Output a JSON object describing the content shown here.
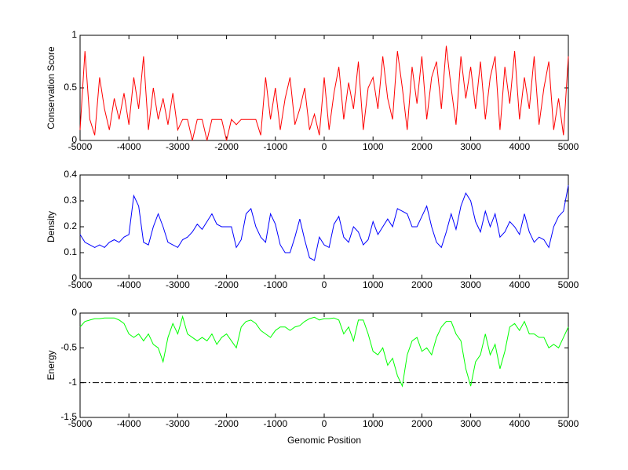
{
  "chart_data": [
    {
      "type": "line",
      "ylabel": "Conservation Score",
      "x": [
        -5000,
        -4900,
        -4800,
        -4700,
        -4600,
        -4500,
        -4400,
        -4300,
        -4200,
        -4100,
        -4000,
        -3900,
        -3800,
        -3700,
        -3600,
        -3500,
        -3400,
        -3300,
        -3200,
        -3100,
        -3000,
        -2900,
        -2800,
        -2700,
        -2600,
        -2500,
        -2400,
        -2300,
        -2200,
        -2100,
        -2000,
        -1900,
        -1800,
        -1700,
        -1600,
        -1500,
        -1400,
        -1300,
        -1200,
        -1100,
        -1000,
        -900,
        -800,
        -700,
        -600,
        -500,
        -400,
        -300,
        -200,
        -100,
        0,
        100,
        200,
        300,
        400,
        500,
        600,
        700,
        800,
        900,
        1000,
        1100,
        1200,
        1300,
        1400,
        1500,
        1600,
        1700,
        1800,
        1900,
        2000,
        2100,
        2200,
        2300,
        2400,
        2500,
        2600,
        2700,
        2800,
        2900,
        3000,
        3100,
        3200,
        3300,
        3400,
        3500,
        3600,
        3700,
        3800,
        3900,
        4000,
        4100,
        4200,
        4300,
        4400,
        4500,
        4600,
        4700,
        4800,
        4900,
        5000
      ],
      "series": [
        {
          "color": "#ff0000",
          "values": [
            0.1,
            0.85,
            0.2,
            0.05,
            0.6,
            0.3,
            0.1,
            0.4,
            0.2,
            0.45,
            0.15,
            0.6,
            0.3,
            0.8,
            0.1,
            0.5,
            0.2,
            0.4,
            0.15,
            0.45,
            0.1,
            0.2,
            0.2,
            0,
            0.2,
            0.2,
            0,
            0.2,
            0.2,
            0.2,
            0,
            0.2,
            0.15,
            0.2,
            0.2,
            0.2,
            0.2,
            0.05,
            0.6,
            0.2,
            0.5,
            0.1,
            0.4,
            0.6,
            0.15,
            0.3,
            0.5,
            0.1,
            0.25,
            0.05,
            0.6,
            0.1,
            0.45,
            0.7,
            0.2,
            0.55,
            0.3,
            0.75,
            0.1,
            0.5,
            0.6,
            0.3,
            0.8,
            0.4,
            0.2,
            0.85,
            0.5,
            0.1,
            0.7,
            0.35,
            0.8,
            0.2,
            0.6,
            0.75,
            0.3,
            0.9,
            0.5,
            0.15,
            0.8,
            0.4,
            0.7,
            0.3,
            0.75,
            0.2,
            0.6,
            0.8,
            0.1,
            0.7,
            0.35,
            0.85,
            0.2,
            0.6,
            0.3,
            0.8,
            0.15,
            0.5,
            0.75,
            0.1,
            0.4,
            0.05,
            0.8
          ]
        }
      ],
      "xlim": [
        -5000,
        5000
      ],
      "xticks": [
        -5000,
        -4000,
        -3000,
        -2000,
        -1000,
        0,
        1000,
        2000,
        3000,
        4000,
        5000
      ],
      "ylim": [
        0,
        1
      ],
      "yticks": [
        0,
        0.5,
        1
      ]
    },
    {
      "type": "line",
      "ylabel": "Density",
      "x": [
        -5000,
        -4900,
        -4800,
        -4700,
        -4600,
        -4500,
        -4400,
        -4300,
        -4200,
        -4100,
        -4000,
        -3900,
        -3800,
        -3700,
        -3600,
        -3500,
        -3400,
        -3300,
        -3200,
        -3100,
        -3000,
        -2900,
        -2800,
        -2700,
        -2600,
        -2500,
        -2400,
        -2300,
        -2200,
        -2100,
        -2000,
        -1900,
        -1800,
        -1700,
        -1600,
        -1500,
        -1400,
        -1300,
        -1200,
        -1100,
        -1000,
        -900,
        -800,
        -700,
        -600,
        -500,
        -400,
        -300,
        -200,
        -100,
        0,
        100,
        200,
        300,
        400,
        500,
        600,
        700,
        800,
        900,
        1000,
        1100,
        1200,
        1300,
        1400,
        1500,
        1600,
        1700,
        1800,
        1900,
        2000,
        2100,
        2200,
        2300,
        2400,
        2500,
        2600,
        2700,
        2800,
        2900,
        3000,
        3100,
        3200,
        3300,
        3400,
        3500,
        3600,
        3700,
        3800,
        3900,
        4000,
        4100,
        4200,
        4300,
        4400,
        4500,
        4600,
        4700,
        4800,
        4900,
        5000
      ],
      "series": [
        {
          "color": "#0000ff",
          "values": [
            0.17,
            0.14,
            0.13,
            0.12,
            0.13,
            0.12,
            0.14,
            0.15,
            0.14,
            0.16,
            0.17,
            0.32,
            0.28,
            0.14,
            0.13,
            0.2,
            0.25,
            0.2,
            0.14,
            0.13,
            0.12,
            0.15,
            0.16,
            0.18,
            0.21,
            0.19,
            0.22,
            0.25,
            0.21,
            0.2,
            0.2,
            0.2,
            0.12,
            0.15,
            0.25,
            0.27,
            0.2,
            0.16,
            0.14,
            0.25,
            0.21,
            0.13,
            0.1,
            0.1,
            0.16,
            0.23,
            0.15,
            0.08,
            0.07,
            0.16,
            0.13,
            0.12,
            0.21,
            0.24,
            0.16,
            0.14,
            0.2,
            0.18,
            0.13,
            0.15,
            0.22,
            0.17,
            0.2,
            0.23,
            0.2,
            0.27,
            0.26,
            0.25,
            0.2,
            0.2,
            0.24,
            0.28,
            0.2,
            0.14,
            0.12,
            0.18,
            0.25,
            0.19,
            0.28,
            0.33,
            0.3,
            0.22,
            0.18,
            0.26,
            0.2,
            0.25,
            0.16,
            0.18,
            0.22,
            0.2,
            0.17,
            0.25,
            0.18,
            0.14,
            0.16,
            0.15,
            0.12,
            0.2,
            0.24,
            0.26,
            0.36
          ]
        }
      ],
      "xlim": [
        -5000,
        5000
      ],
      "xticks": [
        -5000,
        -4000,
        -3000,
        -2000,
        -1000,
        0,
        1000,
        2000,
        3000,
        4000,
        5000
      ],
      "ylim": [
        0,
        0.4
      ],
      "yticks": [
        0,
        0.1,
        0.2,
        0.3,
        0.4
      ]
    },
    {
      "type": "line",
      "ylabel": "Energy",
      "xlabel": "Genomic Position",
      "x": [
        -5000,
        -4900,
        -4800,
        -4700,
        -4600,
        -4500,
        -4400,
        -4300,
        -4200,
        -4100,
        -4000,
        -3900,
        -3800,
        -3700,
        -3600,
        -3500,
        -3400,
        -3300,
        -3200,
        -3100,
        -3000,
        -2900,
        -2800,
        -2700,
        -2600,
        -2500,
        -2400,
        -2300,
        -2200,
        -2100,
        -2000,
        -1900,
        -1800,
        -1700,
        -1600,
        -1500,
        -1400,
        -1300,
        -1200,
        -1100,
        -1000,
        -900,
        -800,
        -700,
        -600,
        -500,
        -400,
        -300,
        -200,
        -100,
        0,
        100,
        200,
        300,
        400,
        500,
        600,
        700,
        800,
        900,
        1000,
        1100,
        1200,
        1300,
        1400,
        1500,
        1600,
        1700,
        1800,
        1900,
        2000,
        2100,
        2200,
        2300,
        2400,
        2500,
        2600,
        2700,
        2800,
        2900,
        3000,
        3100,
        3200,
        3300,
        3400,
        3500,
        3600,
        3700,
        3800,
        3900,
        4000,
        4100,
        4200,
        4300,
        4400,
        4500,
        4600,
        4700,
        4800,
        4900,
        5000
      ],
      "series": [
        {
          "color": "#00ff00",
          "values": [
            -0.2,
            -0.12,
            -0.1,
            -0.08,
            -0.08,
            -0.07,
            -0.07,
            -0.07,
            -0.1,
            -0.15,
            -0.3,
            -0.35,
            -0.3,
            -0.4,
            -0.3,
            -0.45,
            -0.5,
            -0.7,
            -0.35,
            -0.15,
            -0.3,
            -0.05,
            -0.3,
            -0.35,
            -0.4,
            -0.35,
            -0.4,
            -0.3,
            -0.45,
            -0.35,
            -0.3,
            -0.4,
            -0.5,
            -0.2,
            -0.12,
            -0.1,
            -0.15,
            -0.25,
            -0.3,
            -0.35,
            -0.25,
            -0.2,
            -0.2,
            -0.25,
            -0.2,
            -0.18,
            -0.12,
            -0.08,
            -0.06,
            -0.1,
            -0.08,
            -0.08,
            -0.07,
            -0.1,
            -0.3,
            -0.2,
            -0.4,
            -0.1,
            -0.1,
            -0.3,
            -0.55,
            -0.6,
            -0.5,
            -0.75,
            -0.65,
            -0.9,
            -1.05,
            -0.6,
            -0.4,
            -0.35,
            -0.55,
            -0.5,
            -0.6,
            -0.35,
            -0.2,
            -0.12,
            -0.12,
            -0.3,
            -0.4,
            -0.8,
            -1.05,
            -0.7,
            -0.6,
            -0.3,
            -0.6,
            -0.45,
            -0.8,
            -0.55,
            -0.2,
            -0.15,
            -0.25,
            -0.12,
            -0.3,
            -0.3,
            -0.35,
            -0.35,
            -0.5,
            -0.45,
            -0.5,
            -0.35,
            -0.2
          ]
        }
      ],
      "hline": -1,
      "hline_color": "#000000",
      "xlim": [
        -5000,
        5000
      ],
      "xticks": [
        -5000,
        -4000,
        -3000,
        -2000,
        -1000,
        0,
        1000,
        2000,
        3000,
        4000,
        5000
      ],
      "ylim": [
        -1.5,
        0
      ],
      "yticks": [
        -1.5,
        -1,
        -0.5,
        0
      ]
    }
  ]
}
